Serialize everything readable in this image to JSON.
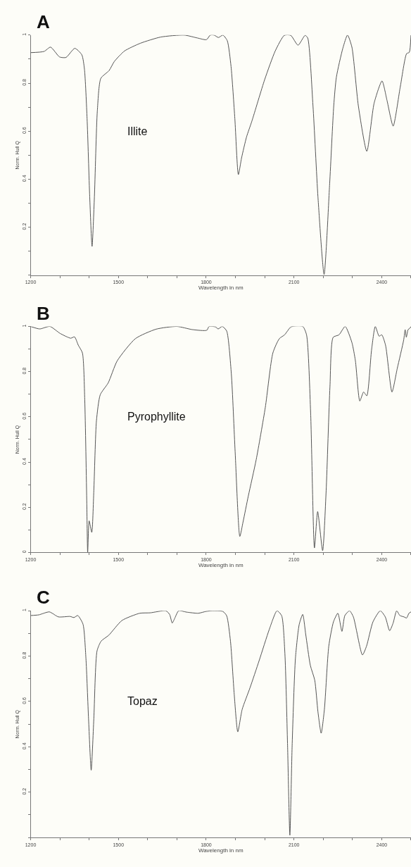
{
  "chart_data": [
    {
      "type": "line",
      "title": "A",
      "xlabel": "Wavelength in nm",
      "ylabel": "Norm. Hull Q",
      "annotations": [
        "Illite"
      ],
      "xlim": [
        1200,
        2500
      ],
      "ylim": [
        0,
        1
      ],
      "xticks": [
        1200,
        {
          "value": 1300,
          "label": null
        },
        {
          "value": 1400,
          "label": null
        },
        1500,
        {
          "value": 1600,
          "label": null
        },
        {
          "value": 1700,
          "label": null
        },
        1800,
        {
          "value": 1900,
          "label": null
        },
        {
          "value": 2000,
          "label": null
        },
        2100,
        {
          "value": 2200,
          "label": null
        },
        {
          "value": 2300,
          "label": null
        },
        2400,
        {
          "value": 2500,
          "label": null
        }
      ],
      "yticks": [
        {
          "value": 0,
          "label": null
        },
        {
          "value": 0.1,
          "label": null
        },
        0.2,
        {
          "value": 0.3,
          "label": null
        },
        0.4,
        {
          "value": 0.5,
          "label": null
        },
        0.6,
        {
          "value": 0.7,
          "label": null
        },
        0.8,
        {
          "value": 0.9,
          "label": null
        },
        1
      ],
      "grid": false,
      "series": [
        {
          "color": "#555555",
          "x": [
            1200,
            1246,
            1268,
            1299,
            1321,
            1351,
            1375,
            1384,
            1393,
            1402,
            1410,
            1418,
            1428,
            1440,
            1468,
            1486,
            1521,
            1575,
            1645,
            1725,
            1770,
            1801,
            1814,
            1827,
            1842,
            1857,
            1872,
            1885,
            1898,
            1910,
            1921,
            1938,
            1956,
            2000,
            2036,
            2067,
            2089,
            2114,
            2138,
            2147,
            2165,
            2182,
            2203,
            2222,
            2236,
            2245,
            2267,
            2283,
            2298,
            2320,
            2349,
            2374,
            2401,
            2418,
            2439,
            2463,
            2485,
            2494,
            2500
          ],
          "values": [
            0.927,
            0.932,
            0.95,
            0.909,
            0.907,
            0.945,
            0.918,
            0.858,
            0.652,
            0.326,
            0.12,
            0.326,
            0.684,
            0.82,
            0.852,
            0.89,
            0.934,
            0.966,
            0.992,
            1.0,
            0.988,
            0.981,
            1.0,
            1.0,
            0.99,
            1.0,
            0.977,
            0.869,
            0.652,
            0.419,
            0.489,
            0.576,
            0.641,
            0.815,
            0.934,
            0.999,
            0.999,
            0.958,
            0.999,
            0.988,
            0.706,
            0.326,
            0.003,
            0.381,
            0.706,
            0.825,
            0.945,
            1.0,
            0.95,
            0.706,
            0.516,
            0.717,
            0.809,
            0.728,
            0.621,
            0.782,
            0.923,
            0.928,
            1.0
          ]
        }
      ]
    },
    {
      "type": "line",
      "title": "B",
      "xlabel": "Wavelength in nm",
      "ylabel": "Norm. Hull Q",
      "annotations": [
        "Pyrophyllite"
      ],
      "xlim": [
        1200,
        2500
      ],
      "ylim": [
        0,
        1
      ],
      "xticks": [
        1200,
        {
          "value": 1300,
          "label": null
        },
        {
          "value": 1400,
          "label": null
        },
        1500,
        {
          "value": 1600,
          "label": null
        },
        {
          "value": 1700,
          "label": null
        },
        1800,
        {
          "value": 1900,
          "label": null
        },
        {
          "value": 2000,
          "label": null
        },
        2100,
        {
          "value": 2200,
          "label": null
        },
        {
          "value": 2300,
          "label": null
        },
        2400,
        {
          "value": 2500,
          "label": null
        }
      ],
      "yticks": [
        0,
        {
          "value": 0.1,
          "label": null
        },
        0.2,
        {
          "value": 0.3,
          "label": null
        },
        0.4,
        {
          "value": 0.5,
          "label": null
        },
        0.6,
        {
          "value": 0.7,
          "label": null
        },
        0.8,
        {
          "value": 0.9,
          "label": null
        },
        1
      ],
      "grid": false,
      "series": [
        {
          "color": "#555555",
          "x": [
            1200,
            1231,
            1266,
            1301,
            1337,
            1350,
            1363,
            1377,
            1385,
            1392,
            1395,
            1400,
            1409,
            1416,
            1425,
            1438,
            1465,
            1496,
            1558,
            1629,
            1700,
            1753,
            1802,
            1810,
            1832,
            1841,
            1855,
            1870,
            1886,
            1899,
            1915,
            1926,
            1944,
            1971,
            2002,
            2028,
            2050,
            2068,
            2090,
            2130,
            2143,
            2157,
            2170,
            2181,
            2198,
            2210,
            2223,
            2234,
            2254,
            2275,
            2298,
            2310,
            2325,
            2338,
            2349,
            2365,
            2378,
            2391,
            2400,
            2413,
            2435,
            2453,
            2475,
            2480,
            2484,
            2490,
            2496,
            2500
          ],
          "values": [
            1.0,
            0.989,
            1.0,
            0.969,
            0.948,
            0.954,
            0.917,
            0.883,
            0.675,
            0.215,
            0.0,
            0.14,
            0.089,
            0.273,
            0.583,
            0.698,
            0.75,
            0.848,
            0.946,
            0.988,
            1.0,
            0.986,
            0.983,
            1.0,
            0.998,
            0.989,
            1.0,
            0.98,
            0.79,
            0.445,
            0.071,
            0.135,
            0.25,
            0.411,
            0.641,
            0.883,
            0.946,
            0.963,
            0.998,
            1.0,
            0.963,
            0.618,
            0.02,
            0.181,
            0.008,
            0.273,
            0.733,
            0.952,
            0.963,
            1.0,
            0.929,
            0.848,
            0.67,
            0.71,
            0.693,
            0.894,
            1.0,
            0.957,
            0.963,
            0.917,
            0.71,
            0.814,
            0.94,
            0.986,
            0.952,
            0.986,
            0.992,
            1.0
          ]
        }
      ]
    },
    {
      "type": "line",
      "title": "C",
      "xlabel": "Wavelength in nm",
      "ylabel": "Norm. Hull Q",
      "annotations": [
        "Topaz"
      ],
      "xlim": [
        1200,
        2500
      ],
      "ylim": [
        0,
        1
      ],
      "xticks": [
        1200,
        {
          "value": 1300,
          "label": null
        },
        {
          "value": 1400,
          "label": null
        },
        1500,
        {
          "value": 1600,
          "label": null
        },
        {
          "value": 1700,
          "label": null
        },
        1800,
        {
          "value": 1900,
          "label": null
        },
        {
          "value": 2000,
          "label": null
        },
        2100,
        {
          "value": 2200,
          "label": null
        },
        {
          "value": 2300,
          "label": null
        },
        2400,
        {
          "value": 2500,
          "label": null
        }
      ],
      "yticks": [
        {
          "value": 0,
          "label": null
        },
        {
          "value": 0.1,
          "label": null
        },
        0.2,
        {
          "value": 0.3,
          "label": null
        },
        0.4,
        {
          "value": 0.5,
          "label": null
        },
        0.6,
        {
          "value": 0.7,
          "label": null
        },
        0.8,
        {
          "value": 0.9,
          "label": null
        },
        1
      ],
      "grid": false,
      "series": [
        {
          "color": "#555555",
          "x": [
            1200,
            1228,
            1264,
            1295,
            1335,
            1348,
            1361,
            1379,
            1389,
            1398,
            1407,
            1416,
            1427,
            1441,
            1467,
            1512,
            1573,
            1609,
            1662,
            1675,
            1684,
            1693,
            1706,
            1733,
            1773,
            1799,
            1821,
            1857,
            1870,
            1883,
            1896,
            1908,
            1923,
            1950,
            1981,
            2016,
            2042,
            2058,
            2069,
            2078,
            2086,
            2094,
            2105,
            2118,
            2130,
            2140,
            2156,
            2171,
            2182,
            2193,
            2204,
            2219,
            2235,
            2250,
            2264,
            2274,
            2290,
            2303,
            2334,
            2348,
            2370,
            2395,
            2412,
            2427,
            2439,
            2451,
            2462,
            2476,
            2485,
            2493,
            2500
          ],
          "values": [
            0.979,
            0.982,
            0.995,
            0.973,
            0.975,
            0.97,
            0.979,
            0.941,
            0.791,
            0.523,
            0.297,
            0.523,
            0.823,
            0.866,
            0.892,
            0.957,
            0.989,
            0.991,
            1.0,
            0.984,
            0.946,
            0.968,
            1.0,
            0.994,
            0.989,
            0.997,
            1.0,
            0.997,
            0.978,
            0.866,
            0.629,
            0.466,
            0.565,
            0.661,
            0.78,
            0.919,
            1.0,
            0.978,
            0.812,
            0.415,
            0.01,
            0.415,
            0.79,
            0.94,
            0.984,
            0.898,
            0.759,
            0.694,
            0.554,
            0.46,
            0.565,
            0.844,
            0.951,
            0.989,
            0.909,
            0.979,
            1.0,
            0.973,
            0.805,
            0.844,
            0.951,
            1.0,
            0.973,
            0.912,
            0.946,
            1.0,
            0.979,
            0.973,
            0.968,
            0.989,
            0.995
          ]
        }
      ]
    }
  ]
}
